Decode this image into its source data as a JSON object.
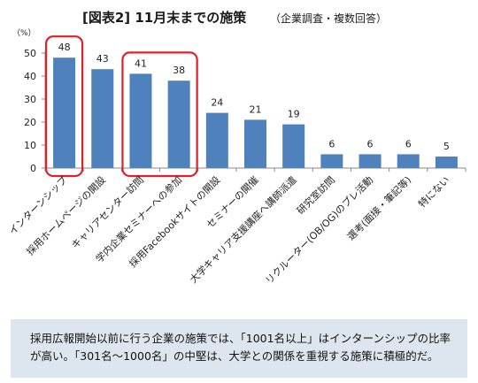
{
  "chart_data": {
    "type": "bar",
    "title": "[図表2] 11月末までの施策",
    "subtitle": "（企業調査・複数回答）",
    "ylabel": "（%）",
    "ylim": [
      0,
      50
    ],
    "yticks": [
      0,
      10,
      20,
      30,
      40,
      50
    ],
    "grid": false,
    "categories": [
      "インターンシップ",
      "採用ホームページの開設",
      "キャリアセンター訪問",
      "学内企業セミナーへの参加",
      "採用Facebookサイトの開設",
      "セミナーの開催",
      "大学キャリア支援講座へ講師派遣",
      "研究室訪問",
      "リクルーター(OB/OG)のプレ活動",
      "選考(面接・筆記等)",
      "特にない"
    ],
    "values": [
      48,
      43,
      41,
      38,
      24,
      21,
      19,
      6,
      6,
      6,
      5
    ],
    "bar_color": "#4f81bd",
    "highlight_color": "#e0202a",
    "highlight_groups": [
      [
        0
      ],
      [
        2,
        3
      ]
    ]
  },
  "note": {
    "line1": "採用広報開始以前に行う企業の施策では、「1001名以上」はインターンシップの比率",
    "line2": "が高い。「301名～1000名」の中堅は、大学との関係を重視する施策に積極的だ。"
  }
}
